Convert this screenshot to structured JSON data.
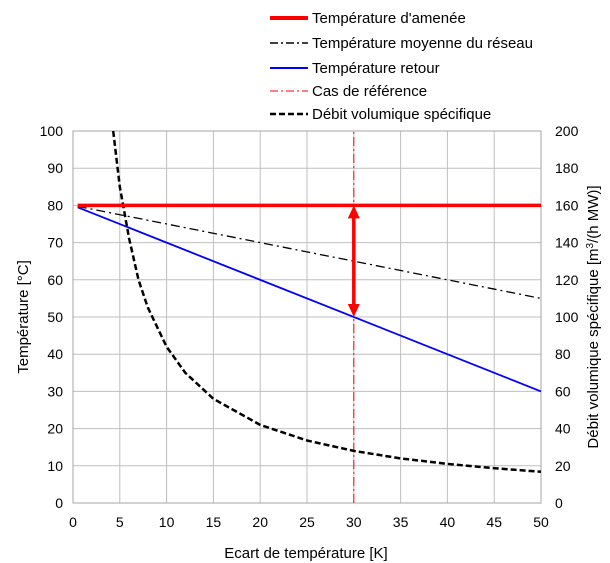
{
  "chart_data": {
    "type": "line",
    "xlabel": "Ecart de température [K]",
    "ylabel_left": "Température  [°C]",
    "ylabel_right_pre": "Débit volumique spécifique [m",
    "ylabel_right_sup": "3",
    "ylabel_right_post": "/(h MW)]",
    "xlim": [
      0,
      50
    ],
    "ylim_left": [
      0,
      100
    ],
    "ylim_right": [
      0,
      200
    ],
    "x_ticks": [
      "0",
      "5",
      "10",
      "15",
      "20",
      "25",
      "30",
      "35",
      "40",
      "45",
      "50"
    ],
    "y_left_ticks": [
      "0",
      "10",
      "20",
      "30",
      "40",
      "50",
      "60",
      "70",
      "80",
      "90",
      "100"
    ],
    "y_right_ticks": [
      "0",
      "20",
      "40",
      "60",
      "80",
      "100",
      "120",
      "140",
      "160",
      "180",
      "200"
    ],
    "grid": true,
    "legend_position": "top",
    "series": [
      {
        "name": "Température d'amenée",
        "axis": "left",
        "color": "#ff0000",
        "style": "solid-thick",
        "x": [
          0.5,
          50
        ],
        "y": [
          80,
          80
        ]
      },
      {
        "name": "Température moyenne du réseau",
        "axis": "left",
        "color": "#000000",
        "style": "dash-dot",
        "x": [
          0.5,
          50
        ],
        "y": [
          79.75,
          55
        ]
      },
      {
        "name": "Température retour",
        "axis": "left",
        "color": "#0000ff",
        "style": "solid",
        "x": [
          0.5,
          50
        ],
        "y": [
          79.5,
          30
        ]
      },
      {
        "name": "Cas de référence",
        "axis": "left",
        "color": "#ff0000",
        "style": "dash-dot-thin",
        "x": [
          30,
          30
        ],
        "y": [
          0,
          100
        ]
      },
      {
        "name": "Débit volumique spécifique",
        "axis": "right",
        "color": "#000000",
        "style": "dashed-thick",
        "x": [
          4.3,
          5,
          6,
          7,
          8,
          10,
          12,
          15,
          20,
          25,
          30,
          35,
          40,
          45,
          50
        ],
        "y": [
          200,
          170,
          142,
          120,
          105,
          84,
          70,
          56,
          42,
          33.6,
          28,
          24,
          21,
          18.7,
          16.8
        ]
      }
    ],
    "annotation": {
      "type": "double-arrow",
      "color": "#ff0000",
      "x": 30,
      "y_from": 50,
      "y_to": 80
    }
  }
}
